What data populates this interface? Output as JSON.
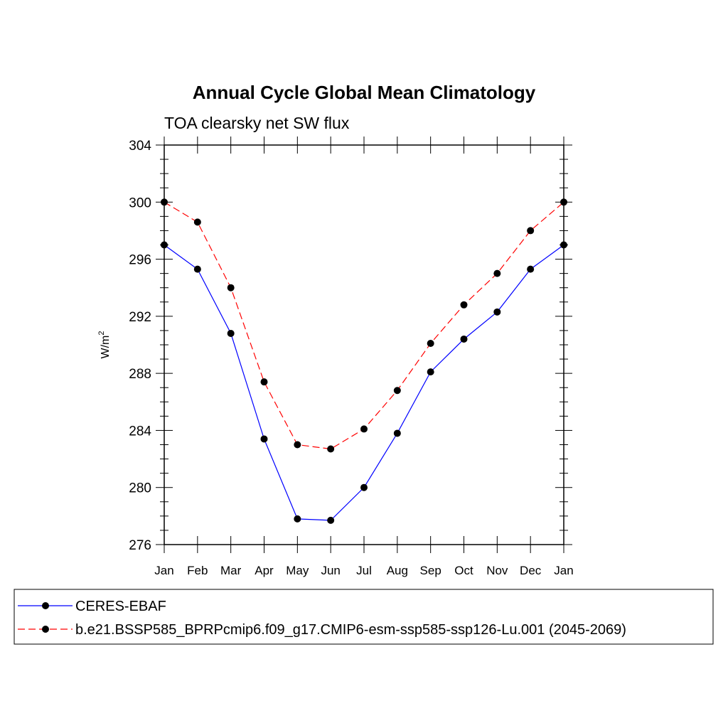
{
  "chart_data": {
    "type": "line",
    "title": "Annual Cycle Global Mean Climatology",
    "subtitle": "TOA clearsky net SW flux",
    "ylabel": "W/m",
    "ylabel_superscript": "2",
    "ylim": [
      276,
      304
    ],
    "yticks": [
      "276",
      "280",
      "284",
      "288",
      "292",
      "296",
      "300",
      "304"
    ],
    "categories": [
      "Jan",
      "Feb",
      "Mar",
      "Apr",
      "May",
      "Jun",
      "Jul",
      "Aug",
      "Sep",
      "Oct",
      "Nov",
      "Dec",
      "Jan"
    ],
    "grid": false,
    "legend_position": "bottom",
    "series": [
      {
        "name": "CERES-EBAF",
        "color": "#0000ff",
        "dash": "solid",
        "values": [
          297.0,
          295.3,
          290.8,
          283.4,
          277.8,
          277.7,
          280.0,
          283.8,
          288.1,
          290.4,
          292.3,
          295.3,
          297.0
        ]
      },
      {
        "name": "b.e21.BSSP585_BPRPcmip6.f09_g17.CMIP6-esm-ssp585-ssp126-Lu.001 (2045-2069)",
        "color": "#ff0000",
        "dash": "dashed",
        "values": [
          300.0,
          298.6,
          294.0,
          287.4,
          283.0,
          282.7,
          284.1,
          286.8,
          290.1,
          292.8,
          295.0,
          298.0,
          300.0
        ]
      }
    ]
  }
}
